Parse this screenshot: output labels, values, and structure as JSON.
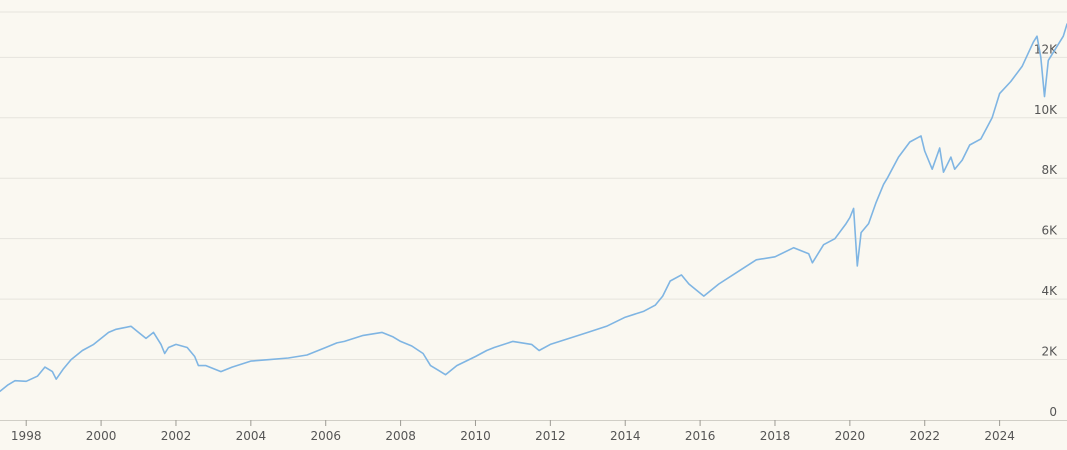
{
  "chart_data": {
    "type": "line",
    "title": "",
    "xlabel": "",
    "ylabel": "",
    "xlim": [
      1997.3,
      2025.8
    ],
    "ylim": [
      0,
      13500
    ],
    "grid": "horizontal",
    "legend": "none",
    "colors": {
      "line": "#7fb5e3",
      "grid": "#e6e4dd",
      "background": "#faf8f1",
      "text": "#555555"
    },
    "y_ticks": [
      {
        "value": 0,
        "label": "0"
      },
      {
        "value": 2000,
        "label": "2K"
      },
      {
        "value": 4000,
        "label": "4K"
      },
      {
        "value": 6000,
        "label": "6K"
      },
      {
        "value": 8000,
        "label": "8K"
      },
      {
        "value": 10000,
        "label": "10K"
      },
      {
        "value": 12000,
        "label": "12K"
      }
    ],
    "x_ticks": [
      {
        "value": 1998,
        "label": "1998"
      },
      {
        "value": 2000,
        "label": "2000"
      },
      {
        "value": 2002,
        "label": "2002"
      },
      {
        "value": 2004,
        "label": "2004"
      },
      {
        "value": 2006,
        "label": "2006"
      },
      {
        "value": 2008,
        "label": "2008"
      },
      {
        "value": 2010,
        "label": "2010"
      },
      {
        "value": 2012,
        "label": "2012"
      },
      {
        "value": 2014,
        "label": "2014"
      },
      {
        "value": 2016,
        "label": "2016"
      },
      {
        "value": 2018,
        "label": "2018"
      },
      {
        "value": 2020,
        "label": "2020"
      },
      {
        "value": 2022,
        "label": "2022"
      },
      {
        "value": 2024,
        "label": "2024"
      }
    ],
    "series": [
      {
        "x": [
          1997.3,
          1997.5,
          1997.7,
          1998.0,
          1998.3,
          1998.5,
          1998.7,
          1998.8,
          1999.0,
          1999.2,
          1999.5,
          1999.8,
          2000.0,
          2000.2,
          2000.4,
          2000.6,
          2000.8,
          2001.0,
          2001.2,
          2001.4,
          2001.6,
          2001.7,
          2001.8,
          2002.0,
          2002.3,
          2002.5,
          2002.6,
          2002.8,
          2003.0,
          2003.2,
          2003.5,
          2004.0,
          2004.5,
          2005.0,
          2005.5,
          2006.0,
          2006.3,
          2006.5,
          2007.0,
          2007.5,
          2007.8,
          2008.0,
          2008.3,
          2008.6,
          2008.8,
          2009.0,
          2009.2,
          2009.5,
          2010.0,
          2010.3,
          2010.5,
          2011.0,
          2011.5,
          2011.7,
          2012.0,
          2012.5,
          2013.0,
          2013.5,
          2014.0,
          2014.5,
          2014.8,
          2015.0,
          2015.2,
          2015.5,
          2015.7,
          2016.0,
          2016.1,
          2016.5,
          2017.0,
          2017.5,
          2018.0,
          2018.5,
          2018.9,
          2019.0,
          2019.3,
          2019.6,
          2019.9,
          2020.0,
          2020.1,
          2020.2,
          2020.3,
          2020.5,
          2020.7,
          2020.9,
          2021.0,
          2021.3,
          2021.6,
          2021.9,
          2022.0,
          2022.2,
          2022.4,
          2022.5,
          2022.7,
          2022.8,
          2023.0,
          2023.2,
          2023.5,
          2023.8,
          2024.0,
          2024.3,
          2024.6,
          2024.9,
          2025.0,
          2025.1,
          2025.2,
          2025.3,
          2025.5,
          2025.7,
          2025.8
        ],
        "values": [
          950,
          1150,
          1300,
          1280,
          1450,
          1750,
          1600,
          1350,
          1700,
          2000,
          2300,
          2500,
          2700,
          2900,
          3000,
          3050,
          3100,
          2900,
          2700,
          2900,
          2500,
          2200,
          2400,
          2500,
          2400,
          2100,
          1800,
          1800,
          1700,
          1600,
          1750,
          1950,
          2000,
          2050,
          2150,
          2400,
          2550,
          2600,
          2800,
          2900,
          2750,
          2600,
          2450,
          2200,
          1800,
          1650,
          1500,
          1800,
          2100,
          2300,
          2400,
          2600,
          2500,
          2300,
          2500,
          2700,
          2900,
          3100,
          3400,
          3600,
          3800,
          4100,
          4600,
          4800,
          4500,
          4200,
          4100,
          4500,
          4900,
          5300,
          5400,
          5700,
          5500,
          5200,
          5800,
          6000,
          6500,
          6700,
          7000,
          5100,
          6200,
          6500,
          7200,
          7800,
          8000,
          8700,
          9200,
          9400,
          8900,
          8300,
          9000,
          8200,
          8700,
          8300,
          8600,
          9100,
          9300,
          10000,
          10800,
          11200,
          11700,
          12500,
          12700,
          12000,
          10700,
          11900,
          12300,
          12700,
          13100
        ]
      }
    ]
  }
}
